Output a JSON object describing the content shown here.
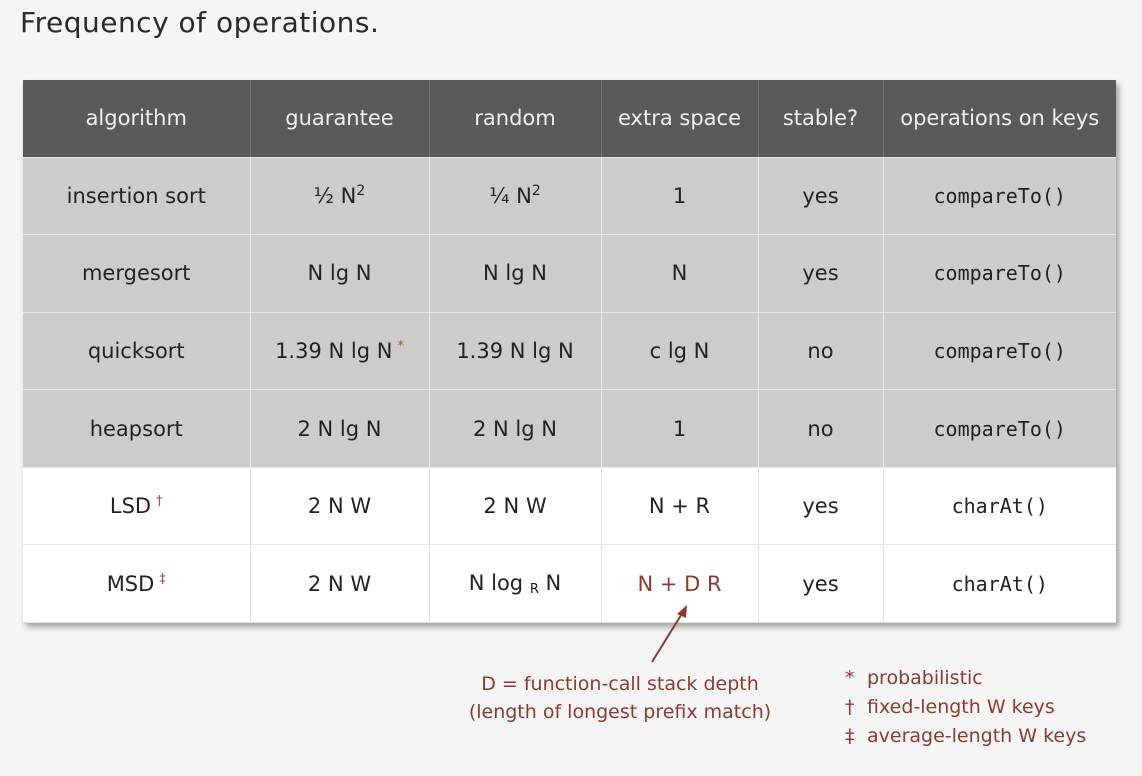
{
  "title": "Frequency of operations.",
  "table": {
    "headers": [
      "algorithm",
      "guarantee",
      "random",
      "extra space",
      "stable?",
      "operations on keys"
    ],
    "rows": [
      {
        "algorithm": "insertion sort",
        "guarantee": "½ N",
        "guarantee_sup": "2",
        "random": "¼ N",
        "random_sup": "2",
        "extra_space": "1",
        "stable": "yes",
        "ops": "compareTo()"
      },
      {
        "algorithm": "mergesort",
        "guarantee": "N lg N",
        "random": "N lg N",
        "extra_space": "N",
        "stable": "yes",
        "ops": "compareTo()"
      },
      {
        "algorithm": "quicksort",
        "guarantee": "1.39 N lg N",
        "guarantee_mark": "*",
        "random": "1.39 N lg N",
        "extra_space": "c lg N",
        "stable": "no",
        "ops": "compareTo()"
      },
      {
        "algorithm": "heapsort",
        "guarantee": "2 N lg N",
        "random": "2 N lg N",
        "extra_space": "1",
        "stable": "no",
        "ops": "compareTo()"
      },
      {
        "algorithm": "LSD",
        "algorithm_mark": "†",
        "guarantee": "2 N W",
        "random": "2 N W",
        "extra_space": "N + R",
        "stable": "yes",
        "ops": "charAt()"
      },
      {
        "algorithm": "MSD",
        "algorithm_mark": "‡",
        "guarantee": "2 N W",
        "random_pre": "N log",
        "random_sub": "R",
        "random_post": "N",
        "extra_space": "N + D R",
        "stable": "yes",
        "ops": "charAt()"
      }
    ]
  },
  "callout": {
    "line1": "D = function-call stack depth",
    "line2": "(length of longest prefix match)"
  },
  "legend": [
    {
      "symbol": "*",
      "text": "probabilistic"
    },
    {
      "symbol": "†",
      "text": "fixed-length W keys"
    },
    {
      "symbol": "‡",
      "text": "average-length W keys"
    }
  ],
  "colors": {
    "header_bg": "#5a5a5a",
    "gray_row": "#cccccc",
    "accent": "#8b3a2e"
  }
}
